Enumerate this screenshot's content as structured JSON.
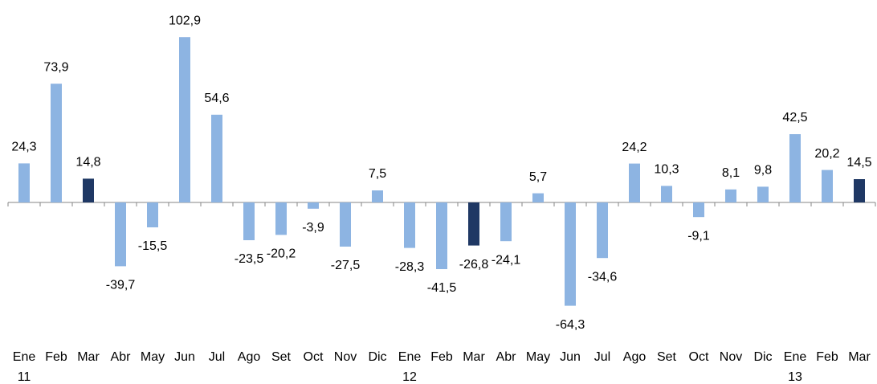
{
  "chart_data": {
    "type": "bar",
    "categories": [
      "Ene",
      "Feb",
      "Mar",
      "Abr",
      "May",
      "Jun",
      "Jul",
      "Ago",
      "Set",
      "Oct",
      "Nov",
      "Dic",
      "Ene",
      "Feb",
      "Mar",
      "Abr",
      "May",
      "Jun",
      "Jul",
      "Ago",
      "Set",
      "Oct",
      "Nov",
      "Dic",
      "Ene",
      "Feb",
      "Mar"
    ],
    "category_years": [
      "11",
      null,
      null,
      null,
      null,
      null,
      null,
      null,
      null,
      null,
      null,
      null,
      "12",
      null,
      null,
      null,
      null,
      null,
      null,
      null,
      null,
      null,
      null,
      null,
      "13",
      null,
      null
    ],
    "values": [
      24.3,
      73.9,
      14.8,
      -39.7,
      -15.5,
      102.9,
      54.6,
      -23.5,
      -20.2,
      -3.9,
      -27.5,
      7.5,
      -28.3,
      -41.5,
      -26.8,
      -24.1,
      5.7,
      -64.3,
      -34.6,
      24.2,
      10.3,
      -9.1,
      8.1,
      9.8,
      42.5,
      20.2,
      14.5
    ],
    "value_labels": [
      "24,3",
      "73,9",
      "14,8",
      "-39,7",
      "-15,5",
      "102,9",
      "54,6",
      "-23,5",
      "-20,2",
      "-3,9",
      "-27,5",
      "7,5",
      "-28,3",
      "-41,5",
      "-26,8",
      "-24,1",
      "5,7",
      "-64,3",
      "-34,6",
      "24,2",
      "10,3",
      "-9,1",
      "8,1",
      "9,8",
      "42,5",
      "20,2",
      "14,5"
    ],
    "colors": [
      "#8db4e2",
      "#8db4e2",
      "#1f3864",
      "#8db4e2",
      "#8db4e2",
      "#8db4e2",
      "#8db4e2",
      "#8db4e2",
      "#8db4e2",
      "#8db4e2",
      "#8db4e2",
      "#8db4e2",
      "#8db4e2",
      "#8db4e2",
      "#1f3864",
      "#8db4e2",
      "#8db4e2",
      "#8db4e2",
      "#8db4e2",
      "#8db4e2",
      "#8db4e2",
      "#8db4e2",
      "#8db4e2",
      "#8db4e2",
      "#8db4e2",
      "#8db4e2",
      "#1f3864"
    ],
    "ylim": [
      -70,
      110
    ]
  }
}
